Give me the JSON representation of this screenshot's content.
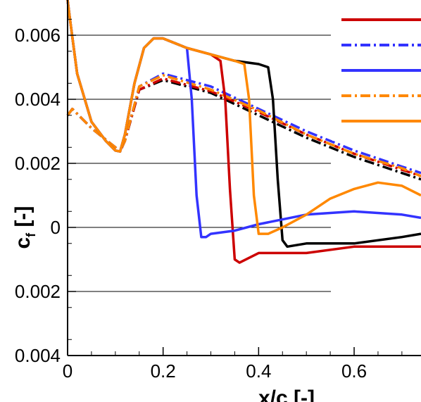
{
  "chart_data": {
    "type": "line",
    "xlabel": "x/c [-]",
    "ylabel_main": "c",
    "ylabel_sub": "f",
    "ylabel_unit": "[-]",
    "xlim": [
      0,
      0.74
    ],
    "ylim": [
      -0.004,
      0.0071
    ],
    "xticks": [
      0,
      0.2,
      0.4,
      0.6
    ],
    "xtick_labels": [
      "0",
      "0.2",
      "0.4",
      "0.6"
    ],
    "yticks": [
      0.006,
      0.004,
      0.002,
      0,
      -0.002,
      -0.004
    ],
    "ytick_labels": [
      "0.006",
      "0.004",
      "0.002",
      "0",
      "0.002",
      "0.004"
    ],
    "grid": "horizontal",
    "legend": "top-right",
    "series": [
      {
        "color": "#000000",
        "dash": "dashdot",
        "x": [
          0,
          0.01,
          0.05,
          0.1,
          0.11,
          0.12,
          0.15,
          0.2,
          0.3,
          0.4,
          0.5,
          0.6,
          0.7,
          0.74
        ],
        "y": [
          0.0035,
          0.0037,
          0.0031,
          0.0025,
          0.00237,
          0.0027,
          0.0043,
          0.0046,
          0.0042,
          0.0035,
          0.0028,
          0.0022,
          0.0017,
          0.0015
        ]
      },
      {
        "color": "#cc0000",
        "dash": "dashdot",
        "x": [
          0,
          0.01,
          0.05,
          0.1,
          0.11,
          0.12,
          0.15,
          0.2,
          0.3,
          0.4,
          0.5,
          0.6,
          0.7,
          0.74
        ],
        "y": [
          0.0035,
          0.0037,
          0.0031,
          0.0025,
          0.00237,
          0.0027,
          0.0043,
          0.00465,
          0.00425,
          0.0036,
          0.0029,
          0.0023,
          0.0018,
          0.0016
        ]
      },
      {
        "color": "#3333ff",
        "dash": "dashdot",
        "x": [
          0,
          0.01,
          0.05,
          0.1,
          0.11,
          0.12,
          0.15,
          0.2,
          0.3,
          0.4,
          0.5,
          0.6,
          0.7,
          0.74
        ],
        "y": [
          0.0035,
          0.0037,
          0.0031,
          0.0025,
          0.00238,
          0.0027,
          0.0044,
          0.0048,
          0.0044,
          0.0037,
          0.003,
          0.0024,
          0.0019,
          0.0017
        ]
      },
      {
        "color": "#ff8800",
        "dash": "dashdot",
        "x": [
          0,
          0.01,
          0.05,
          0.1,
          0.11,
          0.12,
          0.15,
          0.2,
          0.3,
          0.4,
          0.5,
          0.6,
          0.7,
          0.74
        ],
        "y": [
          0.0035,
          0.0037,
          0.0031,
          0.0025,
          0.00238,
          0.0027,
          0.0044,
          0.00475,
          0.0043,
          0.00365,
          0.0029,
          0.0023,
          0.00185,
          0.0016
        ]
      },
      {
        "color": "#000000",
        "dash": "solid",
        "x": [
          0,
          0.005,
          0.02,
          0.05,
          0.08,
          0.1,
          0.11,
          0.12,
          0.14,
          0.16,
          0.18,
          0.2,
          0.25,
          0.3,
          0.35,
          0.4,
          0.42,
          0.43,
          0.44,
          0.45,
          0.46,
          0.5,
          0.6,
          0.7,
          0.74
        ],
        "y": [
          0.0071,
          0.0065,
          0.0048,
          0.0033,
          0.0027,
          0.0024,
          0.00237,
          0.0029,
          0.0045,
          0.0056,
          0.0059,
          0.0059,
          0.0056,
          0.0054,
          0.0052,
          0.0051,
          0.005,
          0.004,
          0.0015,
          -0.0004,
          -0.0006,
          -0.0005,
          -0.0005,
          -0.0003,
          -0.0002
        ]
      },
      {
        "color": "#cc0000",
        "dash": "solid",
        "x": [
          0,
          0.005,
          0.02,
          0.05,
          0.08,
          0.1,
          0.11,
          0.12,
          0.14,
          0.16,
          0.18,
          0.2,
          0.25,
          0.3,
          0.32,
          0.33,
          0.34,
          0.35,
          0.36,
          0.4,
          0.5,
          0.6,
          0.7,
          0.74
        ],
        "y": [
          0.0071,
          0.0065,
          0.0048,
          0.0033,
          0.0027,
          0.0024,
          0.00237,
          0.0029,
          0.0045,
          0.0056,
          0.0059,
          0.0059,
          0.0056,
          0.0054,
          0.0052,
          0.004,
          0.0012,
          -0.001,
          -0.0011,
          -0.0008,
          -0.0008,
          -0.0006,
          -0.0006,
          -0.0006
        ]
      },
      {
        "color": "#3333ff",
        "dash": "solid",
        "x": [
          0,
          0.005,
          0.02,
          0.05,
          0.08,
          0.1,
          0.11,
          0.12,
          0.14,
          0.16,
          0.18,
          0.2,
          0.25,
          0.26,
          0.27,
          0.28,
          0.29,
          0.3,
          0.35,
          0.4,
          0.5,
          0.6,
          0.7,
          0.74
        ],
        "y": [
          0.0071,
          0.0065,
          0.0048,
          0.0033,
          0.0027,
          0.0024,
          0.00237,
          0.0029,
          0.0045,
          0.0056,
          0.0059,
          0.0059,
          0.0056,
          0.004,
          0.001,
          -0.0003,
          -0.0003,
          -0.0002,
          -0.0001,
          0.0001,
          0.0004,
          0.0005,
          0.0004,
          0.0003
        ]
      },
      {
        "color": "#ff8800",
        "dash": "solid",
        "x": [
          0,
          0.005,
          0.02,
          0.05,
          0.08,
          0.1,
          0.11,
          0.12,
          0.14,
          0.16,
          0.18,
          0.2,
          0.25,
          0.3,
          0.35,
          0.37,
          0.38,
          0.39,
          0.4,
          0.42,
          0.45,
          0.5,
          0.55,
          0.6,
          0.65,
          0.7,
          0.74
        ],
        "y": [
          0.0071,
          0.0065,
          0.0048,
          0.0033,
          0.0027,
          0.0024,
          0.00237,
          0.0029,
          0.0045,
          0.0056,
          0.0059,
          0.0059,
          0.0056,
          0.0054,
          0.0052,
          0.0051,
          0.004,
          0.001,
          -0.0002,
          -0.0002,
          0.0,
          0.0004,
          0.0009,
          0.0012,
          0.0014,
          0.0013,
          0.001
        ]
      }
    ]
  }
}
